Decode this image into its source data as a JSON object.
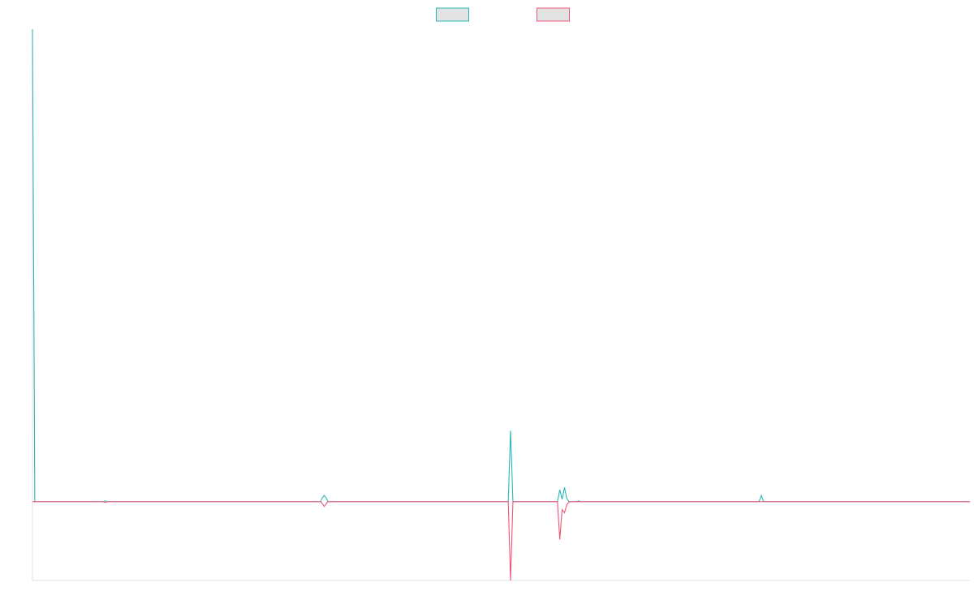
{
  "chart_data": {
    "type": "line",
    "title": "",
    "xlabel": "",
    "ylabel": "",
    "grid": false,
    "legend": {
      "position": "top-center",
      "show_labels": false
    },
    "ylim": [
      -100,
      600
    ],
    "xlim": [
      0,
      400
    ],
    "series": [
      {
        "color": "#2ab7b7",
        "fill": "#e3e3e3",
        "points": [
          [
            0,
            600
          ],
          [
            1,
            0
          ],
          [
            30,
            0
          ],
          [
            31,
            1
          ],
          [
            32,
            0
          ],
          [
            123,
            0
          ],
          [
            123.5,
            4
          ],
          [
            124.5,
            8
          ],
          [
            125.5,
            4
          ],
          [
            126,
            0
          ],
          [
            203,
            0
          ],
          [
            204,
            90
          ],
          [
            205,
            0
          ],
          [
            224,
            0
          ],
          [
            225,
            15
          ],
          [
            226,
            3
          ],
          [
            227,
            18
          ],
          [
            228,
            4
          ],
          [
            229,
            0
          ],
          [
            232,
            0
          ],
          [
            233,
            1
          ],
          [
            234,
            0
          ],
          [
            310,
            0
          ],
          [
            311,
            8
          ],
          [
            312,
            0
          ],
          [
            400,
            0
          ]
        ]
      },
      {
        "color": "#ee5577",
        "fill": "#e3e3e3",
        "points": [
          [
            0,
            0
          ],
          [
            30,
            0
          ],
          [
            31,
            -1
          ],
          [
            32,
            0
          ],
          [
            123,
            0
          ],
          [
            123.5,
            -2
          ],
          [
            124.5,
            -6
          ],
          [
            125.5,
            -2
          ],
          [
            126,
            0
          ],
          [
            203,
            0
          ],
          [
            204,
            -100
          ],
          [
            205,
            0
          ],
          [
            224,
            0
          ],
          [
            225,
            -48
          ],
          [
            226,
            -10
          ],
          [
            227,
            -14
          ],
          [
            228,
            -4
          ],
          [
            229,
            0
          ],
          [
            400,
            0
          ]
        ]
      }
    ]
  }
}
